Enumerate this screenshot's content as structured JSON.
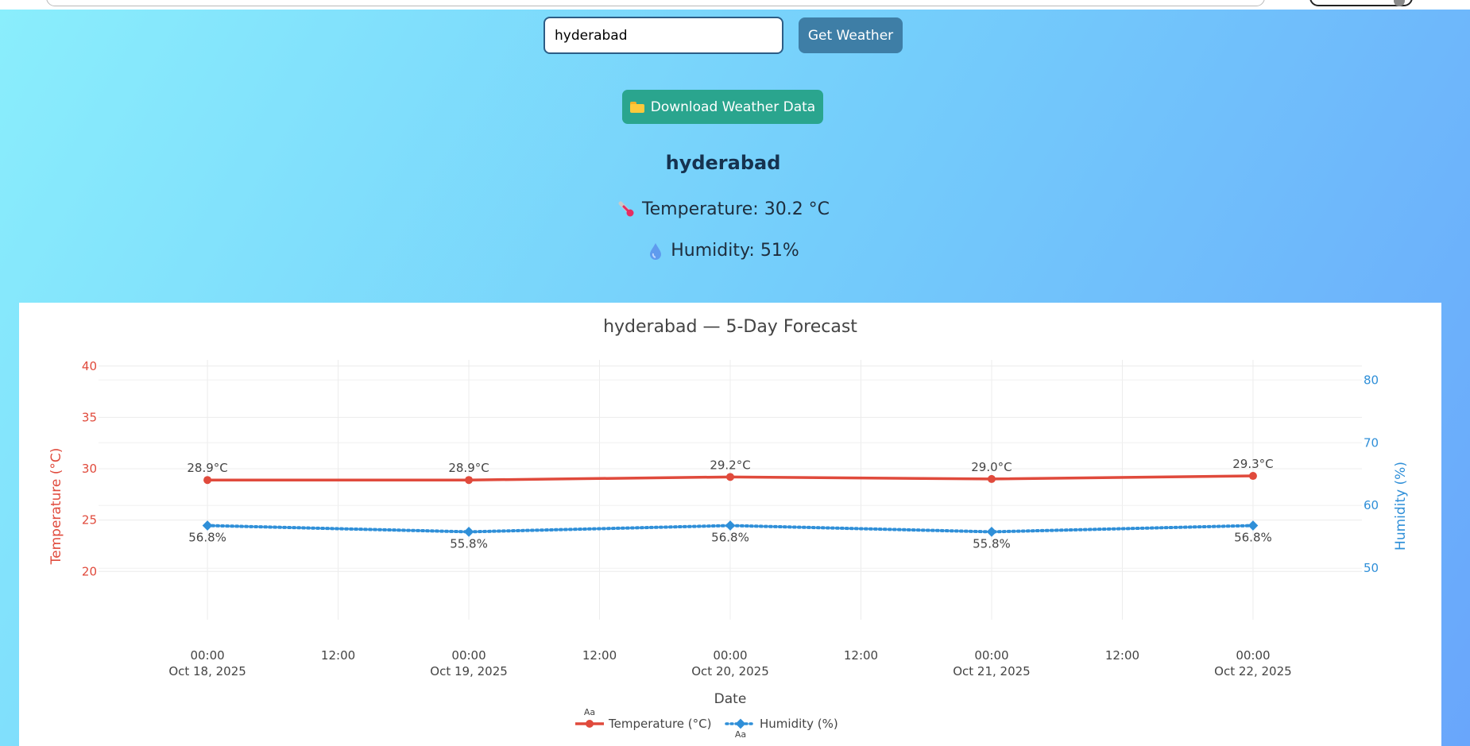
{
  "search": {
    "value": "hyderabad"
  },
  "buttons": {
    "get_weather": "Get Weather",
    "download": "Download Weather Data"
  },
  "weather": {
    "city": "hyderabad",
    "temperature_text": "Temperature: 30.2 °C",
    "humidity_text": "Humidity: 51%"
  },
  "icons": {
    "download": "folder-icon",
    "temperature": "thermometer-icon",
    "humidity": "droplet-icon"
  },
  "colors": {
    "temperature": "#e04a3c",
    "humidity": "#2f8fd8",
    "get_weather_button": "#3e7ea6",
    "download_button": "#2aa58e"
  },
  "chart_data": {
    "type": "line",
    "title": "hyderabad — 5-Day Forecast",
    "xlabel": "Date",
    "ylabel": "Temperature (°C)",
    "y2label": "Humidity (%)",
    "x": [
      "2025-10-18 00:00",
      "2025-10-19 00:00",
      "2025-10-20 00:00",
      "2025-10-21 00:00",
      "2025-10-22 00:00"
    ],
    "x_ticks": [
      {
        "at": "2025-10-18 00:00",
        "line1": "00:00",
        "line2": "Oct 18, 2025"
      },
      {
        "at": "2025-10-18 12:00",
        "line1": "12:00",
        "line2": ""
      },
      {
        "at": "2025-10-19 00:00",
        "line1": "00:00",
        "line2": "Oct 19, 2025"
      },
      {
        "at": "2025-10-19 12:00",
        "line1": "12:00",
        "line2": ""
      },
      {
        "at": "2025-10-20 00:00",
        "line1": "00:00",
        "line2": "Oct 20, 2025"
      },
      {
        "at": "2025-10-20 12:00",
        "line1": "12:00",
        "line2": ""
      },
      {
        "at": "2025-10-21 00:00",
        "line1": "00:00",
        "line2": "Oct 21, 2025"
      },
      {
        "at": "2025-10-21 12:00",
        "line1": "12:00",
        "line2": ""
      },
      {
        "at": "2025-10-22 00:00",
        "line1": "00:00",
        "line2": "Oct 22, 2025"
      }
    ],
    "x_range": [
      "2025-10-17 14:00",
      "2025-10-22 10:00"
    ],
    "y_range": [
      15.3,
      40.6
    ],
    "y_ticks": [
      20,
      25,
      30,
      35,
      40
    ],
    "y2_range": [
      41.8,
      83.2
    ],
    "y2_ticks": [
      50,
      60,
      70,
      80
    ],
    "series": [
      {
        "name": "Temperature (°C)",
        "axis": "y",
        "style": "solid",
        "marker": "circle",
        "color": "#e04a3c",
        "values": [
          28.9,
          28.9,
          29.2,
          29.0,
          29.3
        ],
        "labels": [
          "28.9°C",
          "28.9°C",
          "29.2°C",
          "29.0°C",
          "29.3°C"
        ],
        "label_position": "above"
      },
      {
        "name": "Humidity (%)",
        "axis": "y2",
        "style": "dotted",
        "marker": "diamond",
        "color": "#2f8fd8",
        "values": [
          56.8,
          55.8,
          56.8,
          55.8,
          56.8
        ],
        "labels": [
          "56.8%",
          "55.8%",
          "56.8%",
          "55.8%",
          "56.8%"
        ],
        "label_position": "below"
      }
    ],
    "grid": true,
    "legend": {
      "position": "bottom-center",
      "marker_text": "Aa"
    }
  }
}
